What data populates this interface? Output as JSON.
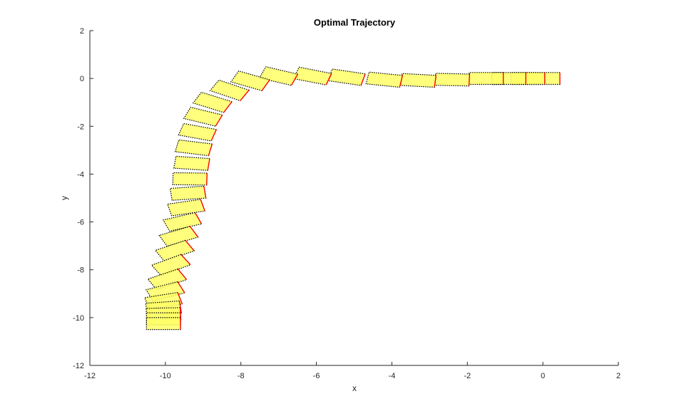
{
  "chart_data": {
    "type": "scatter",
    "title": "Optimal Trajectory",
    "xlabel": "x",
    "ylabel": "y",
    "xlim": [
      -12,
      2
    ],
    "ylim": [
      -12,
      2
    ],
    "x_ticks": [
      -12,
      -10,
      -8,
      -6,
      -4,
      -2,
      0,
      2
    ],
    "y_ticks": [
      -12,
      -10,
      -8,
      -6,
      -4,
      -2,
      0,
      2
    ],
    "x_tick_labels": [
      "-12",
      "-10",
      "-8",
      "-6",
      "-4",
      "-2",
      "0",
      "2"
    ],
    "y_tick_labels": [
      "-12",
      "-10",
      "-8",
      "-6",
      "-4",
      "-2",
      "0",
      "2"
    ],
    "grid": false,
    "vehicle_length": 0.9,
    "vehicle_width": 0.5,
    "colors": {
      "body": "#ffff66",
      "outline": "#000000",
      "front_edge": "#ff0000"
    },
    "poses": [
      {
        "x": 0.0,
        "y": 0.0,
        "theta": 0
      },
      {
        "x": -0.4,
        "y": 0.0,
        "theta": 0
      },
      {
        "x": -0.9,
        "y": 0.0,
        "theta": 0
      },
      {
        "x": -1.5,
        "y": 0.0,
        "theta": 0
      },
      {
        "x": -2.4,
        "y": -0.05,
        "theta": -2
      },
      {
        "x": -3.3,
        "y": -0.08,
        "theta": -5
      },
      {
        "x": -4.2,
        "y": -0.05,
        "theta": -9
      },
      {
        "x": -5.2,
        "y": 0.05,
        "theta": -13
      },
      {
        "x": -6.1,
        "y": 0.1,
        "theta": -17
      },
      {
        "x": -7.0,
        "y": 0.1,
        "theta": -20
      },
      {
        "x": -7.75,
        "y": -0.1,
        "theta": -24
      },
      {
        "x": -8.3,
        "y": -0.5,
        "theta": -28
      },
      {
        "x": -8.75,
        "y": -1.0,
        "theta": -26
      },
      {
        "x": -9.0,
        "y": -1.6,
        "theta": -21
      },
      {
        "x": -9.15,
        "y": -2.25,
        "theta": -16
      },
      {
        "x": -9.25,
        "y": -2.9,
        "theta": -11
      },
      {
        "x": -9.3,
        "y": -3.55,
        "theta": -6
      },
      {
        "x": -9.35,
        "y": -4.2,
        "theta": -1
      },
      {
        "x": -9.4,
        "y": -4.8,
        "theta": 6
      },
      {
        "x": -9.45,
        "y": -5.4,
        "theta": 13
      },
      {
        "x": -9.55,
        "y": -6.0,
        "theta": 20
      },
      {
        "x": -9.65,
        "y": -6.6,
        "theta": 25
      },
      {
        "x": -9.75,
        "y": -7.2,
        "theta": 28
      },
      {
        "x": -9.85,
        "y": -7.8,
        "theta": 30
      },
      {
        "x": -9.95,
        "y": -8.4,
        "theta": 28
      },
      {
        "x": -10.0,
        "y": -8.9,
        "theta": 22
      },
      {
        "x": -10.05,
        "y": -9.3,
        "theta": 14
      },
      {
        "x": -10.05,
        "y": -9.6,
        "theta": 6
      },
      {
        "x": -10.05,
        "y": -9.85,
        "theta": 2
      },
      {
        "x": -10.05,
        "y": -10.05,
        "theta": 0
      },
      {
        "x": -10.05,
        "y": -10.25,
        "theta": 0
      }
    ]
  }
}
